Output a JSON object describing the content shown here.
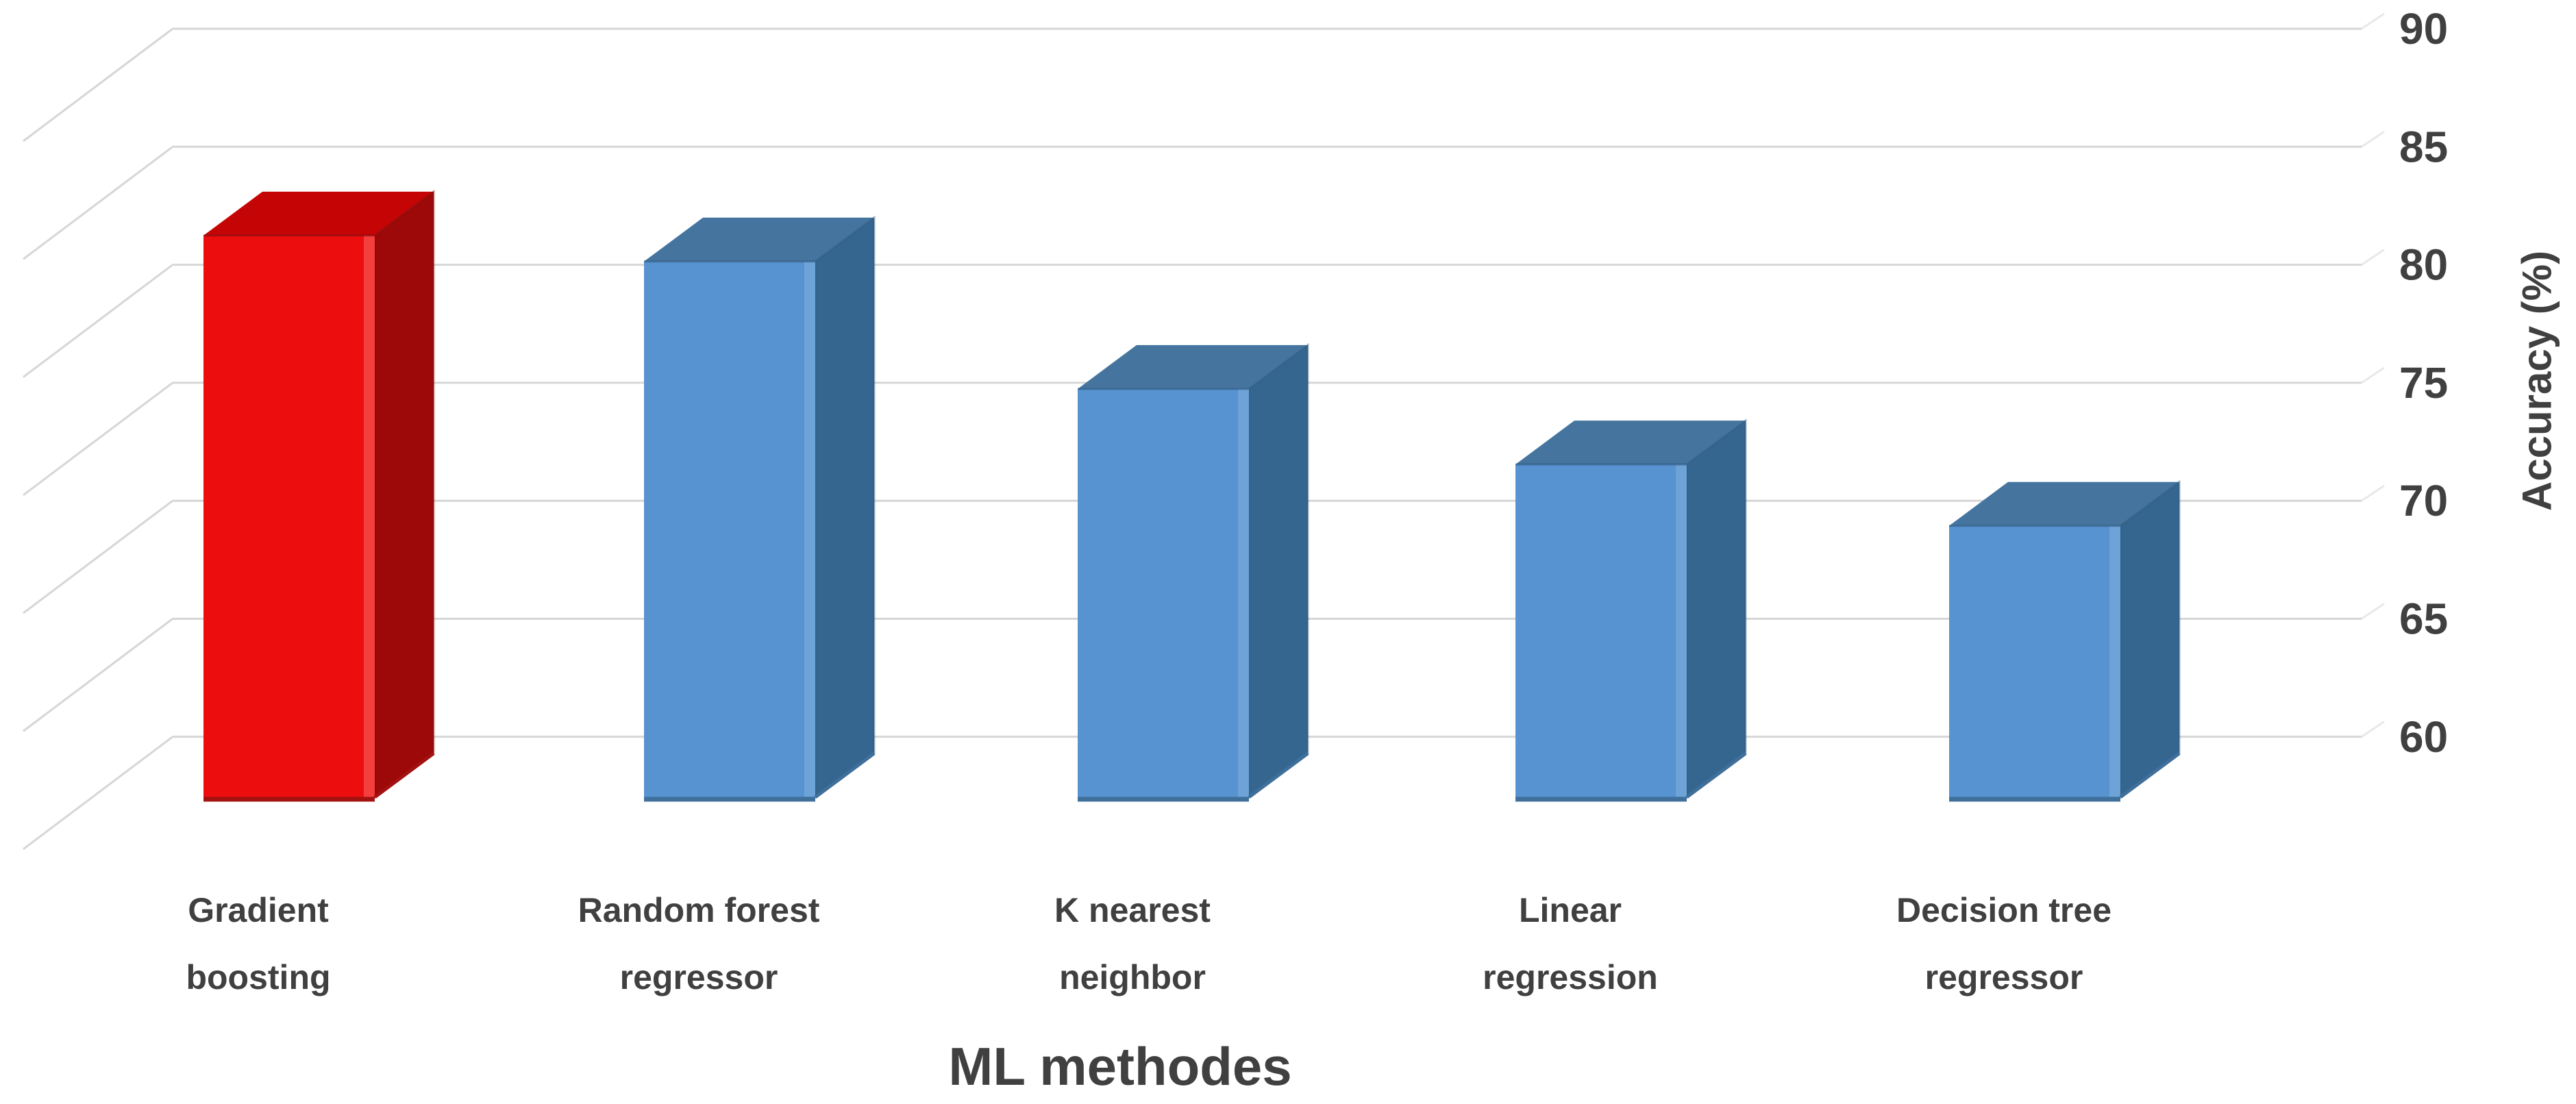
{
  "chart_data": {
    "type": "bar",
    "variant": "3d-column",
    "title": "",
    "xlabel": "ML methodes",
    "ylabel": "Accuracy (%)",
    "ylim": [
      60,
      90
    ],
    "yticks": [
      90,
      85,
      80,
      75,
      70,
      65,
      60
    ],
    "grid": true,
    "legend": "none",
    "categories": [
      "Gradient boosting",
      "Random forest regressor",
      "K nearest neighbor",
      "Linear regression",
      "Decision tree regressor"
    ],
    "category_label_lines": [
      [
        "Gradient",
        "boosting"
      ],
      [
        "Random forest",
        "regressor"
      ],
      [
        "K nearest",
        "neighbor"
      ],
      [
        "Linear",
        "regression"
      ],
      [
        "Decision tree",
        "regressor"
      ]
    ],
    "values": [
      83.8,
      82.7,
      77.3,
      74.1,
      71.5
    ],
    "bars": [
      {
        "category": "Gradient boosting",
        "value": 83.8,
        "palette": "highlight"
      },
      {
        "category": "Random forest regressor",
        "value": 82.7,
        "palette": "default"
      },
      {
        "category": "K nearest neighbor",
        "value": 77.3,
        "palette": "default"
      },
      {
        "category": "Linear regression",
        "value": 74.1,
        "palette": "default"
      },
      {
        "category": "Decision tree regressor",
        "value": 71.5,
        "palette": "default"
      }
    ]
  },
  "colors": {
    "background": "#ffffff",
    "grid": "#d6d6d6",
    "text": "#404040",
    "palettes": {
      "highlight": {
        "front": "#ec0e0e",
        "front_hi": "#f75050",
        "top": "#c50505",
        "side": "#9d0808",
        "edge": "#7c0a0a",
        "bevel": "#a31111"
      },
      "default": {
        "front": "#5793d0",
        "front_hi": "#74a8da",
        "top": "#45759f",
        "side": "#35668f",
        "edge": "#2c567d",
        "bevel": "#3f6f9b"
      }
    }
  }
}
